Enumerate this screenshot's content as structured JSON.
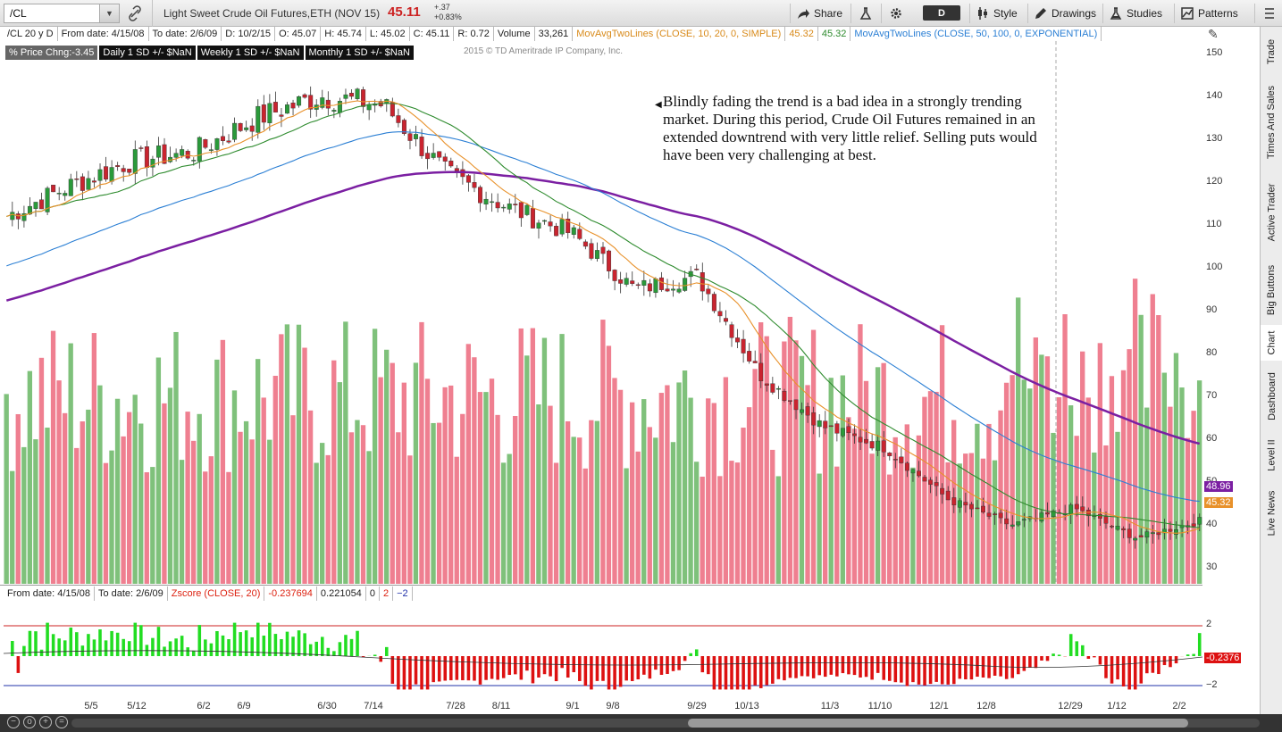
{
  "toolbar": {
    "symbol": "/CL",
    "description": "Light Sweet Crude Oil Futures,ETH (NOV 15)",
    "last": "45.11",
    "change_abs": "+.37",
    "change_pct": "+0.83%",
    "share_label": "Share",
    "timeframe": "D",
    "style_label": "Style",
    "drawings_label": "Drawings",
    "studies_label": "Studies",
    "patterns_label": "Patterns"
  },
  "info": {
    "aggregation": "/CL 20 y D",
    "from_date": "From date: 4/15/08",
    "to_date": "To date: 2/6/09",
    "d": "D: 10/2/15",
    "o": "O: 45.07",
    "h": "H: 45.74",
    "l": "L: 45.02",
    "c": "C: 45.11",
    "r": "R: 0.72",
    "volume_label": "Volume",
    "volume_value": "33,261",
    "ma1_label": "MovAvgTwoLines (CLOSE, 10, 20, 0, SIMPLE)",
    "ma1_v1": "45.32",
    "ma1_v2": "45.32",
    "ma2_label": "MovAvgTwoLines (CLOSE, 50, 100, 0, EXPONENTIAL)"
  },
  "badges": {
    "price_chg": "% Price Chng:-3.45",
    "daily_sd": "Daily 1 SD +/- $NaN",
    "weekly_sd": "Weekly 1 SD +/- $NaN",
    "monthly_sd": "Monthly 1 SD +/- $NaN",
    "copyright": "2015 © TD Ameritrade IP Company, Inc."
  },
  "annotation": "Blindly fading the trend is a bad idea in a strongly trending market.  During this period, Crude Oil Futures remained in an extended downtrend with very little relief.  Selling puts would have been very challenging at best.",
  "lower": {
    "from_date": "From date: 4/15/08",
    "to_date": "To date: 2/6/09",
    "study": "Zscore (CLOSE, 20)",
    "v1": "-0.237694",
    "v2": "0.221054",
    "v3": "0",
    "v4": "2",
    "v5": "−2"
  },
  "price_axis": {
    "ticks": [
      "150",
      "140",
      "130",
      "120",
      "110",
      "100",
      "90",
      "80",
      "70",
      "60",
      "50",
      "40",
      "30"
    ],
    "tag_purple": "48.96",
    "tag_orange": "45.32"
  },
  "sub_axis": {
    "ticks": [
      "2",
      "−2"
    ],
    "tag": "-0.2376"
  },
  "dates": [
    "5/5",
    "5/12",
    "6/2",
    "6/9",
    "6/30",
    "7/14",
    "7/28",
    "8/11",
    "9/1",
    "9/8",
    "9/29",
    "10/13",
    "11/3",
    "11/10",
    "12/1",
    "12/8",
    "12/29",
    "1/12",
    "2/2"
  ],
  "side_tabs": [
    "Trade",
    "Times And Sales",
    "Active Trader",
    "Big Buttons",
    "Chart",
    "Dashboard",
    "Level II",
    "Live News"
  ],
  "colors": {
    "up": "#2a9a3a",
    "down": "#c9242f",
    "vol_up": "#7fc17b",
    "vol_down": "#ef7f90",
    "ma10": "#e8912a",
    "ma20": "#2e8b2e",
    "ema50": "#2b7fd4",
    "ema100": "#7b1fa2",
    "z_pos": "#22dd22",
    "z_neg": "#dd1111"
  },
  "chart_data": {
    "type": "candlestick",
    "symbol": "/CL",
    "ylim": [
      28,
      152
    ],
    "monthly_close_approx": [
      {
        "date": "4/15/08",
        "close": 112
      },
      {
        "date": "5/5/08",
        "close": 119
      },
      {
        "date": "5/12/08",
        "close": 125
      },
      {
        "date": "6/2/08",
        "close": 127
      },
      {
        "date": "6/9/08",
        "close": 135
      },
      {
        "date": "6/30/08",
        "close": 140
      },
      {
        "date": "7/14/08",
        "close": 138
      },
      {
        "date": "7/28/08",
        "close": 122
      },
      {
        "date": "8/11/08",
        "close": 114
      },
      {
        "date": "9/1/08",
        "close": 108
      },
      {
        "date": "9/8/08",
        "close": 95
      },
      {
        "date": "9/29/08",
        "close": 98
      },
      {
        "date": "10/13/08",
        "close": 75
      },
      {
        "date": "11/3/08",
        "close": 63
      },
      {
        "date": "11/10/08",
        "close": 58
      },
      {
        "date": "12/1/08",
        "close": 46
      },
      {
        "date": "12/8/08",
        "close": 40
      },
      {
        "date": "12/29/08",
        "close": 44
      },
      {
        "date": "1/12/09",
        "close": 37
      },
      {
        "date": "2/2/09",
        "close": 41
      }
    ],
    "indicator_last": {
      "ma10": 45.32,
      "ma20": 45.32,
      "ema100": 48.96,
      "zscore": -0.2376
    }
  }
}
